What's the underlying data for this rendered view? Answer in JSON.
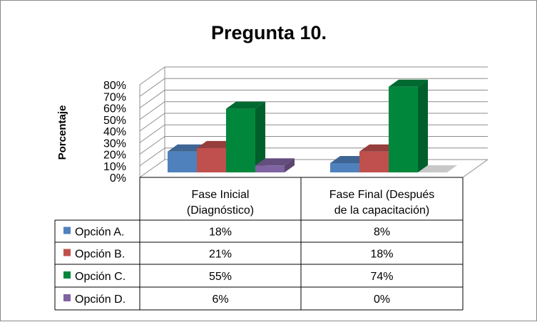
{
  "chart_data": {
    "type": "bar",
    "title": "Pregunta 10.",
    "ylabel": "Porcentaje",
    "xlabel": "",
    "ylim": [
      0,
      80
    ],
    "yticks": [
      "0%",
      "10%",
      "20%",
      "30%",
      "40%",
      "50%",
      "60%",
      "70%",
      "80%"
    ],
    "grid": true,
    "three_d": true,
    "legend_placement": "data-table",
    "categories": [
      [
        "Fase Inicial",
        "(Diagnóstico)"
      ],
      [
        "Fase Final (Después",
        "de la capacitación)"
      ]
    ],
    "series": [
      {
        "name": "Opción A.",
        "color": "#4F81BD",
        "values": [
          18,
          8
        ],
        "labels": [
          "18%",
          "8%"
        ]
      },
      {
        "name": "Opción B.",
        "color": "#C0504D",
        "values": [
          21,
          18
        ],
        "labels": [
          "21%",
          "18%"
        ]
      },
      {
        "name": "Opción C.",
        "color": "#00873C",
        "values": [
          55,
          74
        ],
        "labels": [
          "55%",
          "74%"
        ]
      },
      {
        "name": "Opción D.",
        "color": "#8064A2",
        "values": [
          6,
          0
        ],
        "labels": [
          "6%",
          "0%"
        ]
      }
    ]
  }
}
